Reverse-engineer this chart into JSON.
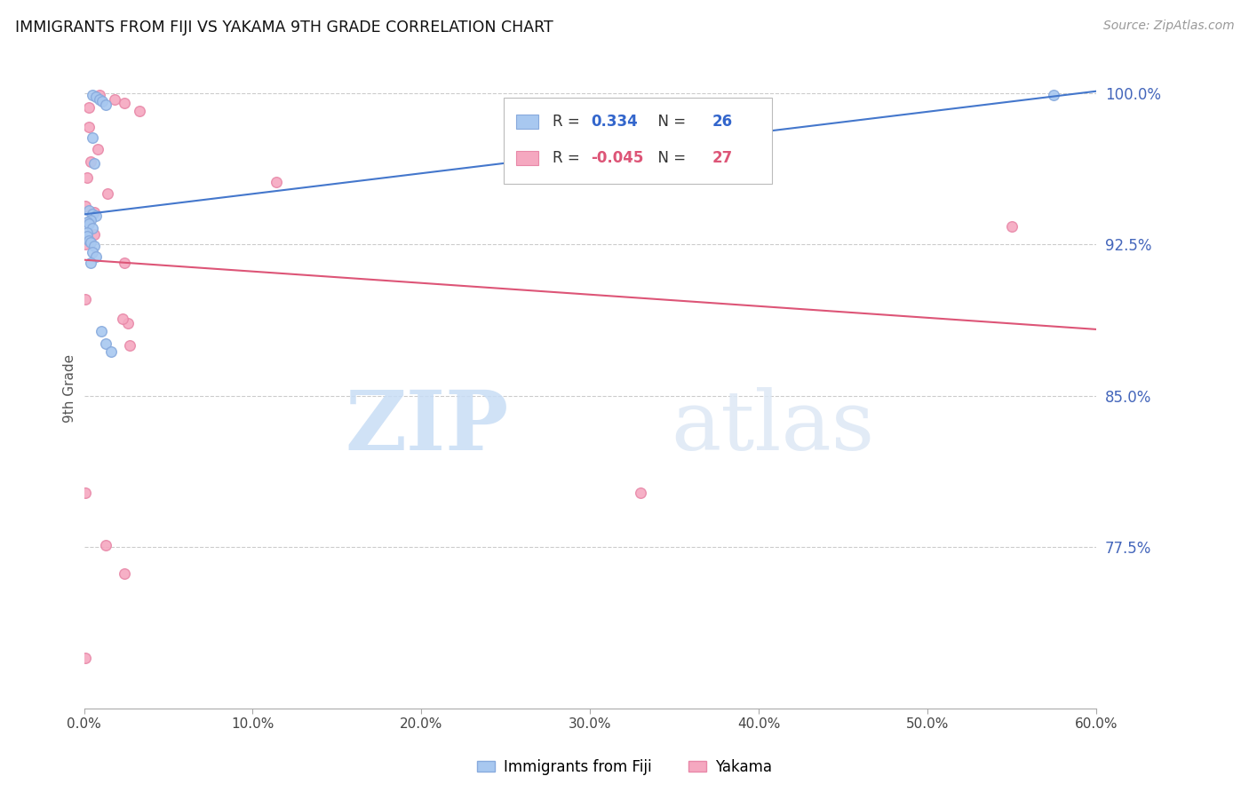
{
  "title": "IMMIGRANTS FROM FIJI VS YAKAMA 9TH GRADE CORRELATION CHART",
  "source_text": "Source: ZipAtlas.com",
  "ylabel": "9th Grade",
  "xmin": 0.0,
  "xmax": 0.6,
  "ymin": 0.695,
  "ymax": 1.012,
  "yticks": [
    0.775,
    0.85,
    0.925,
    1.0
  ],
  "ytick_labels": [
    "77.5%",
    "85.0%",
    "92.5%",
    "100.0%"
  ],
  "xticks": [
    0.0,
    0.1,
    0.2,
    0.3,
    0.4,
    0.5,
    0.6
  ],
  "xtick_labels": [
    "0.0%",
    "10.0%",
    "20.0%",
    "30.0%",
    "40.0%",
    "50.0%",
    "60.0%"
  ],
  "blue_color": "#a8c8f0",
  "pink_color": "#f5a8c0",
  "blue_edge_color": "#88aadd",
  "pink_edge_color": "#e888a8",
  "blue_line_color": "#4477cc",
  "pink_line_color": "#dd5577",
  "marker_size": 70,
  "legend_R_blue": "0.334",
  "legend_N_blue": "26",
  "legend_R_pink": "-0.045",
  "legend_N_pink": "27",
  "legend_label_blue": "Immigrants from Fiji",
  "legend_label_pink": "Yakama",
  "watermark_zip": "ZIP",
  "watermark_atlas": "atlas",
  "blue_points": [
    [
      0.005,
      0.999
    ],
    [
      0.007,
      0.998
    ],
    [
      0.009,
      0.997
    ],
    [
      0.011,
      0.996
    ],
    [
      0.013,
      0.994
    ],
    [
      0.005,
      0.978
    ],
    [
      0.003,
      0.942
    ],
    [
      0.005,
      0.94
    ],
    [
      0.007,
      0.939
    ],
    [
      0.004,
      0.937
    ],
    [
      0.002,
      0.936
    ],
    [
      0.003,
      0.935
    ],
    [
      0.005,
      0.933
    ],
    [
      0.002,
      0.931
    ],
    [
      0.002,
      0.929
    ],
    [
      0.003,
      0.927
    ],
    [
      0.004,
      0.926
    ],
    [
      0.006,
      0.924
    ],
    [
      0.005,
      0.921
    ],
    [
      0.007,
      0.919
    ],
    [
      0.004,
      0.916
    ],
    [
      0.01,
      0.882
    ],
    [
      0.013,
      0.876
    ],
    [
      0.016,
      0.872
    ],
    [
      0.575,
      0.999
    ],
    [
      0.006,
      0.965
    ]
  ],
  "pink_points": [
    [
      0.009,
      0.999
    ],
    [
      0.018,
      0.997
    ],
    [
      0.024,
      0.995
    ],
    [
      0.003,
      0.993
    ],
    [
      0.033,
      0.991
    ],
    [
      0.003,
      0.983
    ],
    [
      0.008,
      0.972
    ],
    [
      0.004,
      0.966
    ],
    [
      0.002,
      0.958
    ],
    [
      0.014,
      0.95
    ],
    [
      0.001,
      0.944
    ],
    [
      0.006,
      0.941
    ],
    [
      0.003,
      0.936
    ],
    [
      0.006,
      0.93
    ],
    [
      0.001,
      0.925
    ],
    [
      0.024,
      0.916
    ],
    [
      0.114,
      0.956
    ],
    [
      0.001,
      0.898
    ],
    [
      0.026,
      0.886
    ],
    [
      0.027,
      0.875
    ],
    [
      0.001,
      0.802
    ],
    [
      0.33,
      0.802
    ],
    [
      0.013,
      0.776
    ],
    [
      0.55,
      0.934
    ],
    [
      0.024,
      0.762
    ],
    [
      0.001,
      0.72
    ],
    [
      0.023,
      0.888
    ]
  ]
}
